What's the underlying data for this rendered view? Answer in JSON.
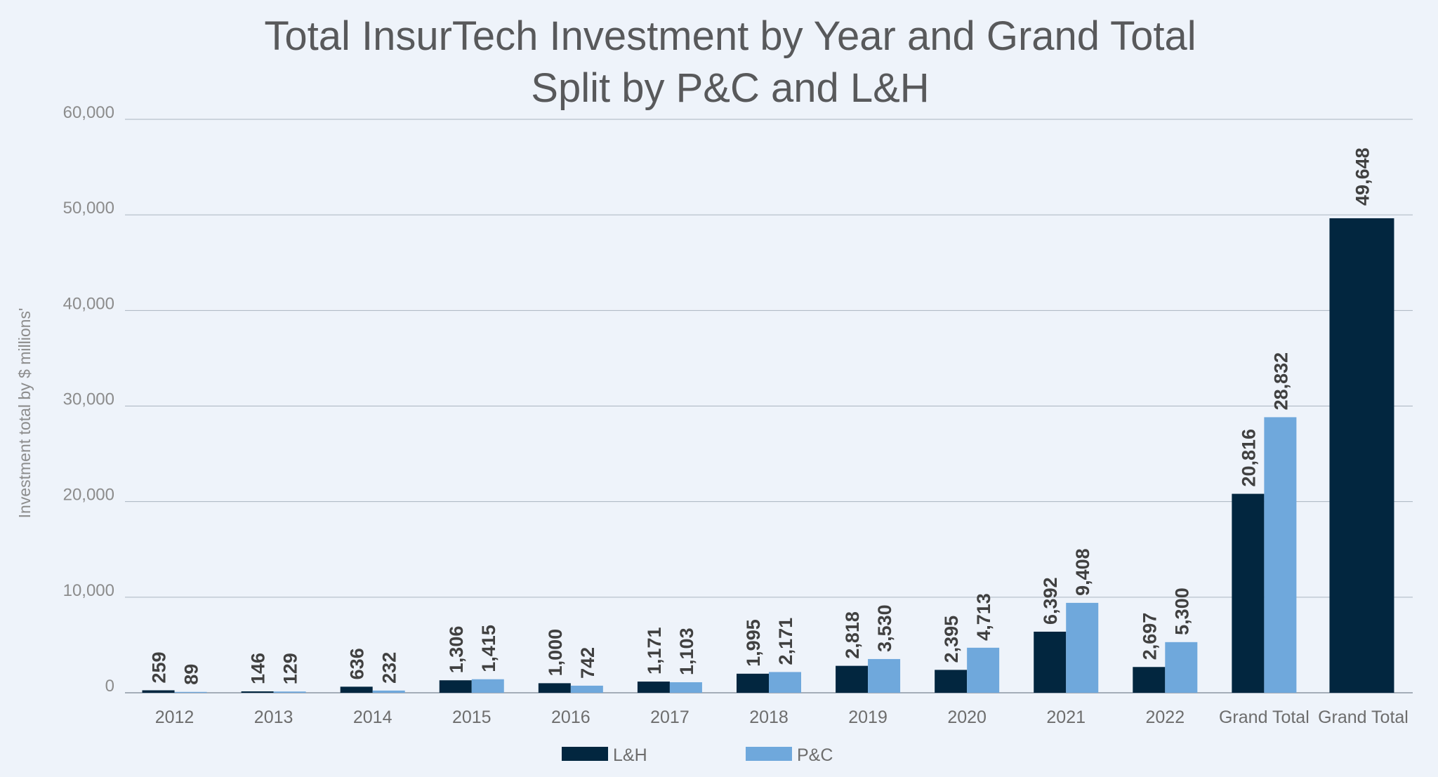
{
  "chart_data": {
    "type": "bar",
    "title": "Total InsurTech Investment by Year and Grand Total",
    "subtitle": "Split by P&C and L&H",
    "xlabel": "",
    "ylabel": "Investment total by $ millions'",
    "ylim": [
      0,
      60000
    ],
    "yticks": [
      "0",
      "10,000",
      "20,000",
      "30,000",
      "40,000",
      "50,000",
      "60,000"
    ],
    "grid": true,
    "legend": "bottom",
    "categories": [
      "2012",
      "2013",
      "2014",
      "2015",
      "2016",
      "2017",
      "2018",
      "2019",
      "2020",
      "2021",
      "2022",
      "Grand Total",
      "Grand Total"
    ],
    "series": [
      {
        "name": "L&H",
        "color": "#02263f",
        "values": [
          259,
          146,
          636,
          1306,
          1000,
          1171,
          1995,
          2818,
          2395,
          6392,
          2697,
          20816,
          null
        ],
        "labels": [
          "259",
          "146",
          "636",
          "1,306",
          "1,000",
          "1,171",
          "1,995",
          "2,818",
          "2,395",
          "6,392",
          "2,697",
          "20,816",
          null
        ]
      },
      {
        "name": "P&C",
        "color": "#6fa8dc",
        "values": [
          89,
          129,
          232,
          1415,
          742,
          1103,
          2171,
          3530,
          4713,
          9408,
          5300,
          28832,
          null
        ],
        "labels": [
          "89",
          "129",
          "232",
          "1,415",
          "742",
          "1,103",
          "2,171",
          "3,530",
          "4,713",
          "9,408",
          "5,300",
          "28,832",
          null
        ]
      }
    ],
    "total": {
      "category_index": 12,
      "value": 49648,
      "label": "49,648",
      "color": "#02263f"
    }
  }
}
